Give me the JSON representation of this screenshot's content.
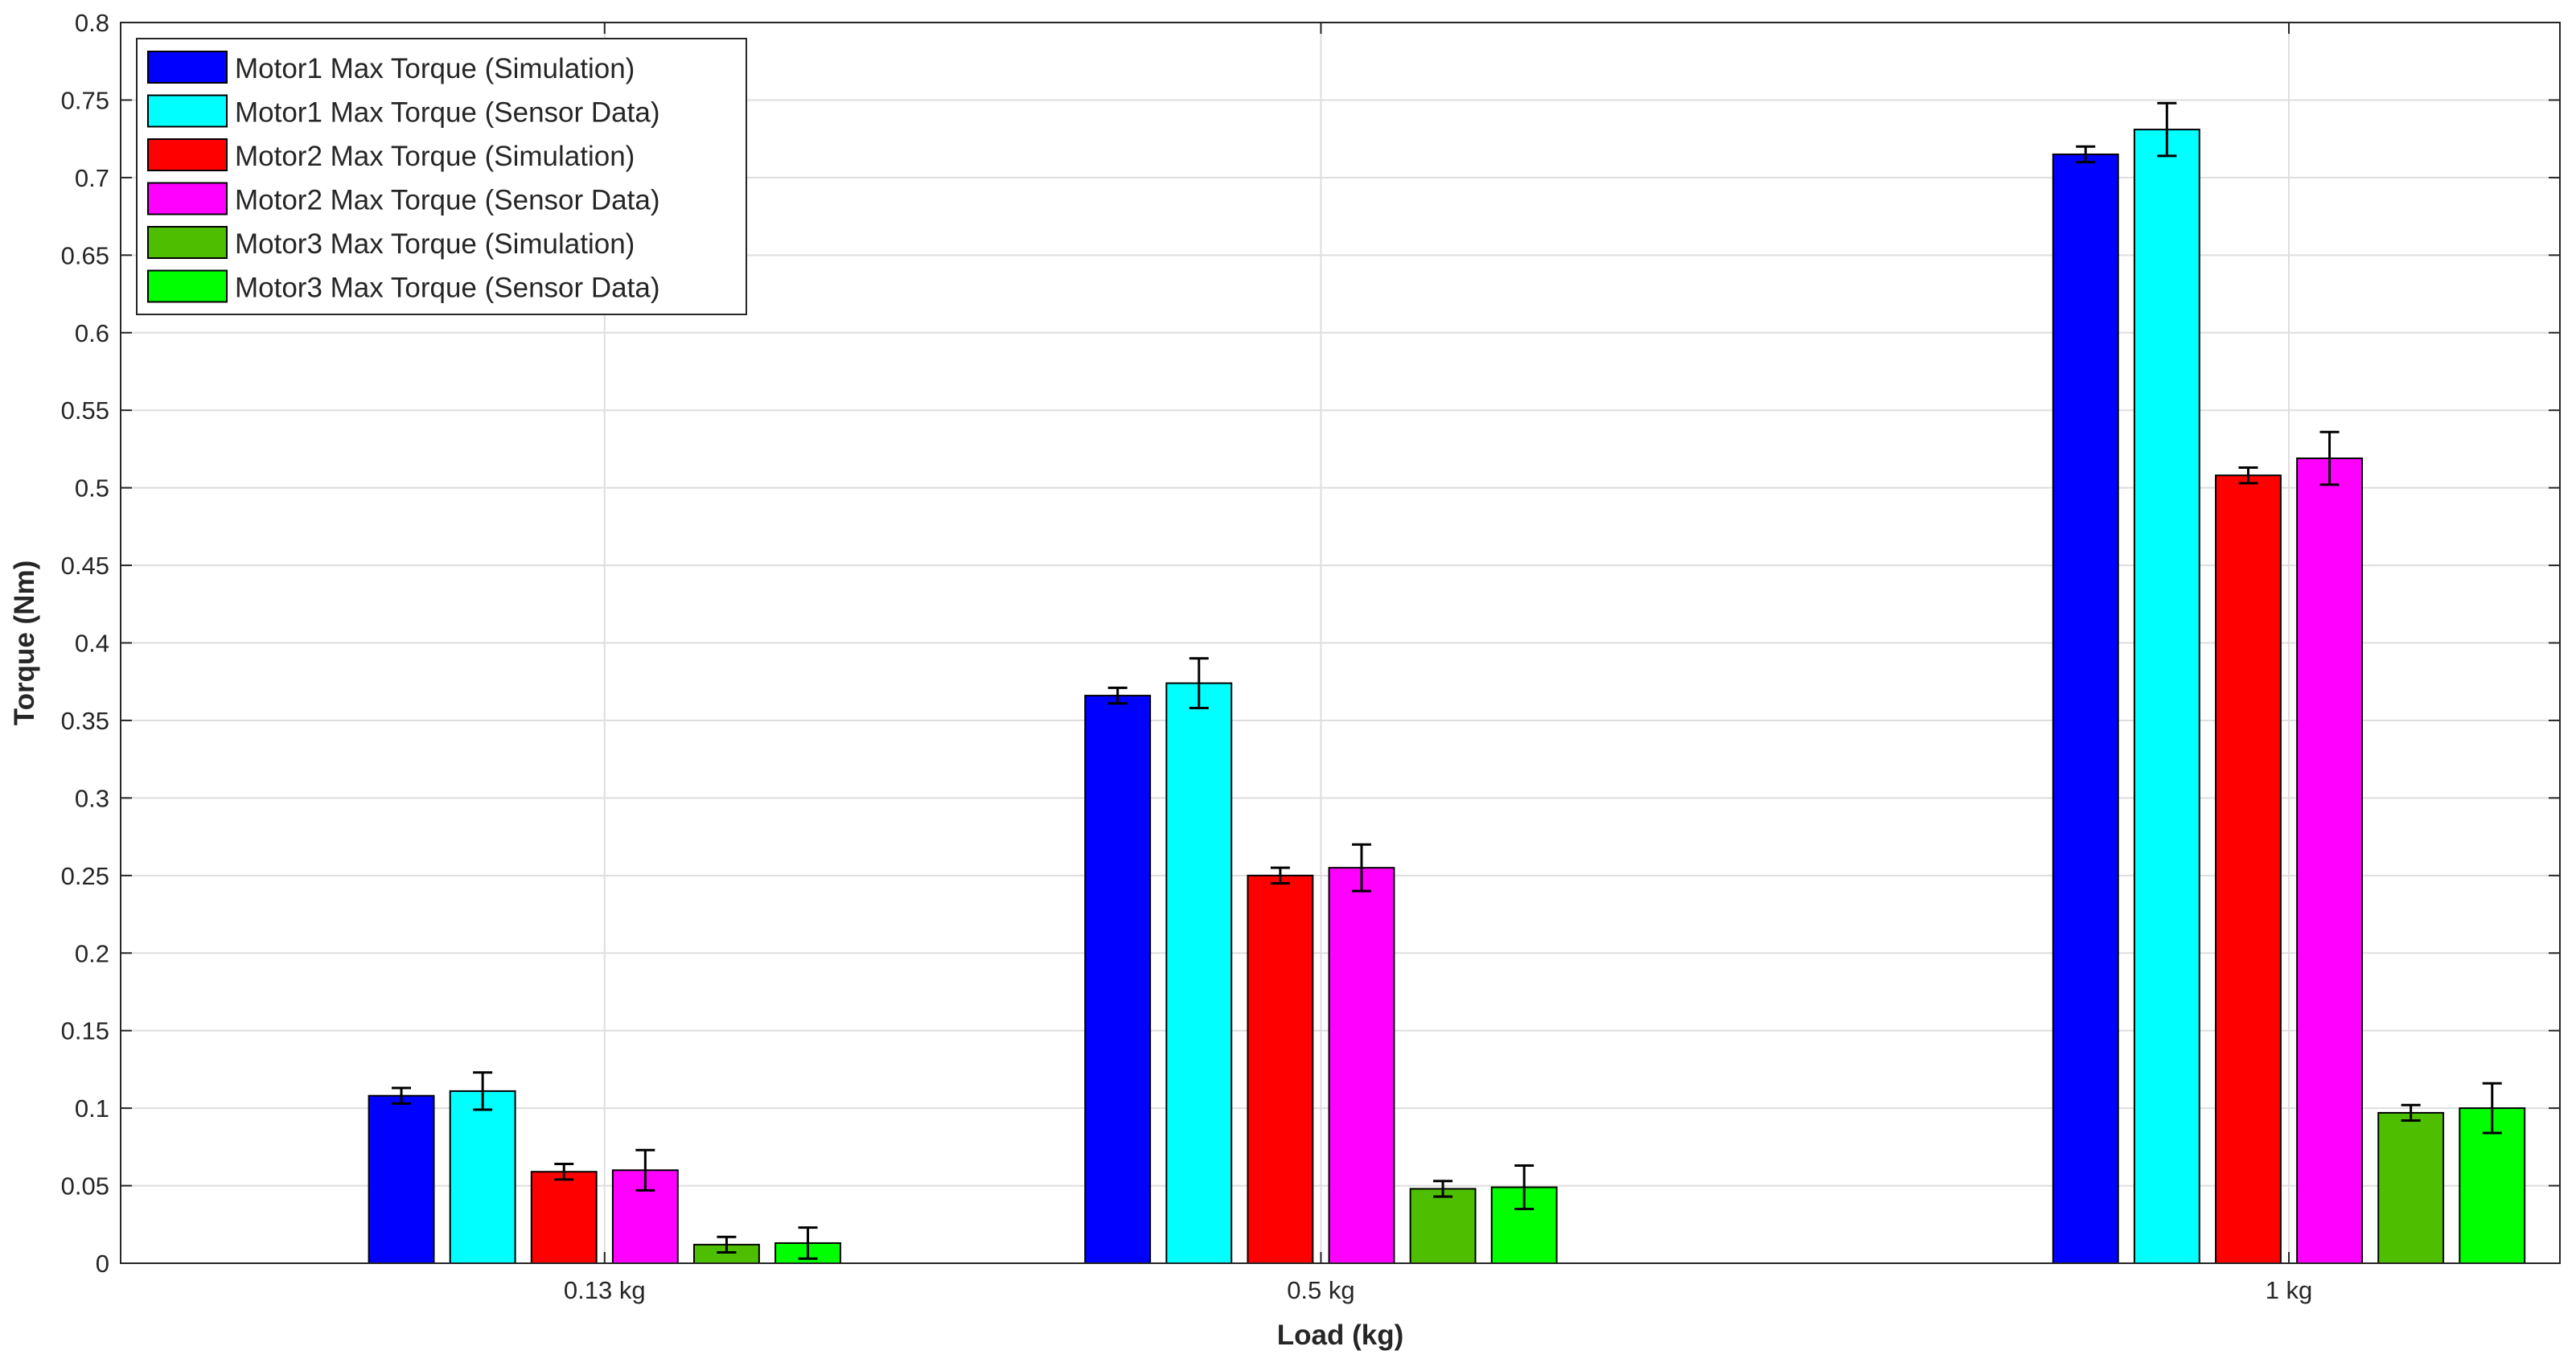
{
  "chart_data": {
    "type": "bar",
    "title": "",
    "xlabel": "Load (kg)",
    "ylabel": "Torque (Nm)",
    "categories": [
      "0.13 kg",
      "0.5 kg",
      "1 kg"
    ],
    "x_values": [
      0.13,
      0.5,
      1
    ],
    "x_range": [
      -0.12,
      1.14
    ],
    "ylim": [
      0,
      0.8
    ],
    "yticks": [
      "0",
      "0.05",
      "0.1",
      "0.15",
      "0.2",
      "0.25",
      "0.3",
      "0.35",
      "0.4",
      "0.45",
      "0.5",
      "0.55",
      "0.6",
      "0.65",
      "0.7",
      "0.75",
      "0.8"
    ],
    "grid": true,
    "legend_position": "top-left",
    "series": [
      {
        "name": "Motor1 Max Torque (Simulation)",
        "color": "#0000FF",
        "values": [
          0.108,
          0.366,
          0.715
        ],
        "errors": [
          0.005,
          0.005,
          0.005
        ]
      },
      {
        "name": "Motor1 Max Torque (Sensor Data)",
        "color": "#00FFFF",
        "values": [
          0.111,
          0.374,
          0.731
        ],
        "errors": [
          0.012,
          0.016,
          0.017
        ]
      },
      {
        "name": "Motor2 Max Torque (Simulation)",
        "color": "#FF0000",
        "values": [
          0.059,
          0.25,
          0.508
        ],
        "errors": [
          0.005,
          0.005,
          0.005
        ]
      },
      {
        "name": "Motor2 Max Torque (Sensor Data)",
        "color": "#FF00FF",
        "values": [
          0.06,
          0.255,
          0.519
        ],
        "errors": [
          0.013,
          0.015,
          0.017
        ]
      },
      {
        "name": "Motor3 Max Torque (Simulation)",
        "color": "#4DBE00",
        "values": [
          0.012,
          0.048,
          0.097
        ],
        "errors": [
          0.005,
          0.005,
          0.005
        ]
      },
      {
        "name": "Motor3 Max Torque (Sensor Data)",
        "color": "#00FF00",
        "values": [
          0.013,
          0.049,
          0.1
        ],
        "errors": [
          0.01,
          0.014,
          0.016
        ]
      }
    ]
  }
}
